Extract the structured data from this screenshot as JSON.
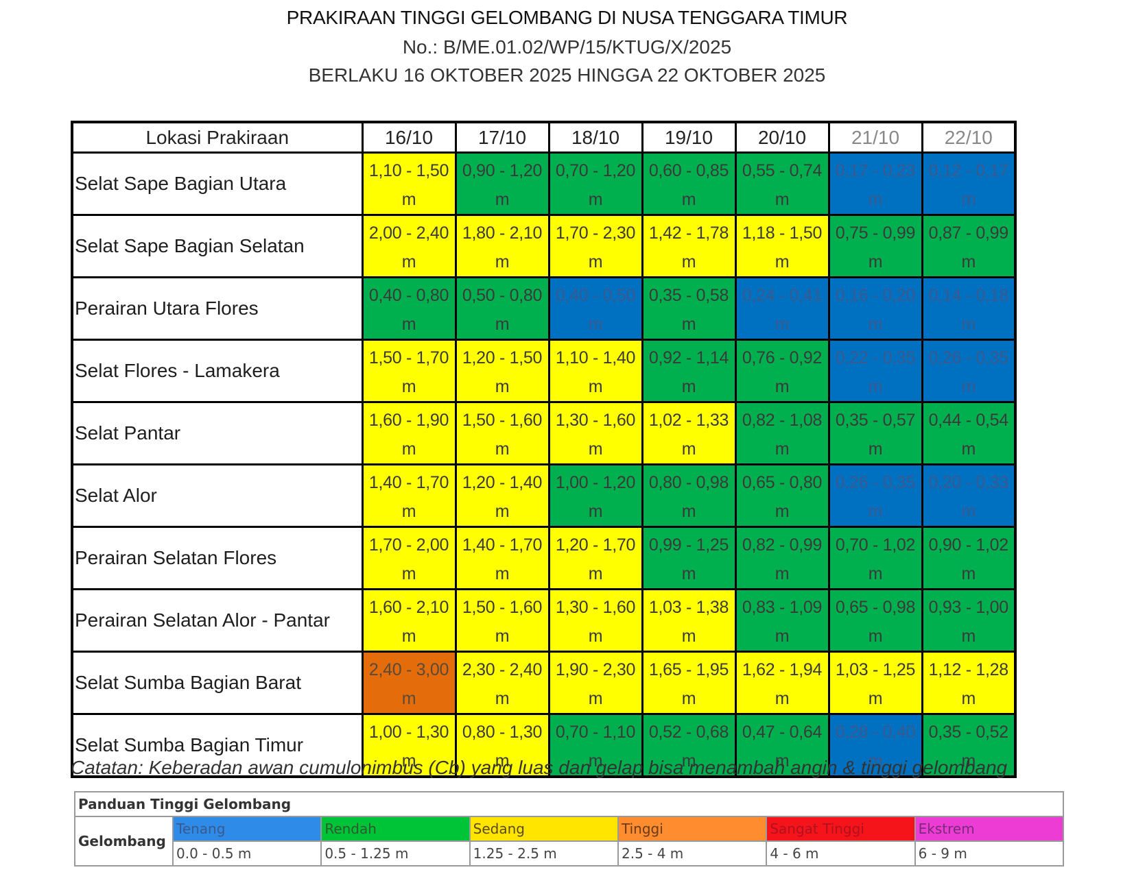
{
  "header": {
    "title": "PRAKIRAAN TINGGI GELOMBANG DI NUSA TENGGARA TIMUR",
    "number": "No.: B/ME.01.02/WP/15/KTUG/X/2025",
    "validity": "BERLAKU 16 OKTOBER 2025 HINGGA 22 OKTOBER 2025"
  },
  "table": {
    "location_header": "Lokasi Prakiraan",
    "dates": [
      "16/10",
      "17/10",
      "18/10",
      "19/10",
      "20/10",
      "21/10",
      "22/10"
    ],
    "unit": "m",
    "rows": [
      {
        "location": "Selat Sape Bagian Utara",
        "values": [
          "1,10 - 1,50",
          "0,90 - 1,20",
          "0,70 - 1,20",
          "0,60 - 0,85",
          "0,55 - 0,74",
          "0,17 - 0,23",
          "0,12 - 0,17"
        ],
        "colors": [
          "yellow",
          "green",
          "green",
          "green",
          "green",
          "blue",
          "blue"
        ]
      },
      {
        "location": "Selat Sape Bagian Selatan",
        "values": [
          "2,00 - 2,40",
          "1,80 - 2,10",
          "1,70 - 2,30",
          "1,42 - 1,78",
          "1,18 - 1,50",
          "0,75 - 0,99",
          "0,87 - 0,99"
        ],
        "colors": [
          "yellow",
          "yellow",
          "yellow",
          "yellow",
          "yellow",
          "green",
          "green"
        ]
      },
      {
        "location": "Perairan Utara Flores",
        "values": [
          "0,40 - 0,80",
          "0,50 - 0,80",
          "0,40 - 0,50",
          "0,35 - 0,58",
          "0,24 - 0,41",
          "0,16 - 0,20",
          "0,14 - 0,18"
        ],
        "colors": [
          "green",
          "green",
          "blue",
          "green",
          "blue",
          "blue",
          "blue"
        ]
      },
      {
        "location": "Selat Flores - Lamakera",
        "values": [
          "1,50 - 1,70",
          "1,20 - 1,50",
          "1,10 - 1,40",
          "0,92 - 1,14",
          "0,76 - 0,92",
          "0,22 - 0,35",
          "0,26 - 0,35"
        ],
        "colors": [
          "yellow",
          "yellow",
          "yellow",
          "green",
          "green",
          "blue",
          "blue"
        ]
      },
      {
        "location": "Selat Pantar",
        "values": [
          "1,60 - 1,90",
          "1,50 - 1,60",
          "1,30 - 1,60",
          "1,02 - 1,33",
          "0,82 - 1,08",
          "0,35 - 0,57",
          "0,44 - 0,54"
        ],
        "colors": [
          "yellow",
          "yellow",
          "yellow",
          "yellow",
          "green",
          "green",
          "green"
        ]
      },
      {
        "location": "Selat Alor",
        "values": [
          "1,40 - 1,70",
          "1,20 - 1,40",
          "1,00 - 1,20",
          "0,80 - 0,98",
          "0,65 - 0,80",
          "0,26 - 0,35",
          "0,20 - 0,33"
        ],
        "colors": [
          "yellow",
          "yellow",
          "green",
          "green",
          "green",
          "blue",
          "blue"
        ]
      },
      {
        "location": "Perairan Selatan Flores",
        "values": [
          "1,70 - 2,00",
          "1,40 - 1,70",
          "1,20 - 1,70",
          "0,99 - 1,25",
          "0,82 - 0,99",
          "0,70 - 1,02",
          "0,90 - 1,02"
        ],
        "colors": [
          "yellow",
          "yellow",
          "yellow",
          "green",
          "green",
          "green",
          "green"
        ]
      },
      {
        "location": "Perairan Selatan Alor - Pantar",
        "values": [
          "1,60 - 2,10",
          "1,50 - 1,60",
          "1,30 - 1,60",
          "1,03 - 1,38",
          "0,83 - 1,09",
          "0,65 - 0,98",
          "0,93 - 1,00"
        ],
        "colors": [
          "yellow",
          "yellow",
          "yellow",
          "yellow",
          "green",
          "green",
          "green"
        ]
      },
      {
        "location": "Selat Sumba Bagian Barat",
        "values": [
          "2,40 - 3,00",
          "2,30 - 2,40",
          "1,90 - 2,30",
          "1,65 - 1,95",
          "1,62 - 1,94",
          "1,03 - 1,25",
          "1,12 - 1,28"
        ],
        "colors": [
          "orange",
          "yellow",
          "yellow",
          "yellow",
          "yellow",
          "yellow",
          "yellow"
        ]
      },
      {
        "location": "Selat Sumba Bagian Timur",
        "values": [
          "1,00 - 1,30",
          "0,80 - 1,30",
          "0,70 - 1,10",
          "0,52 - 0,68",
          "0,47 - 0,64",
          "0,28 - 0,40",
          "0,35 - 0,52"
        ],
        "colors": [
          "yellow",
          "yellow",
          "green",
          "green",
          "green",
          "blue",
          "green"
        ]
      }
    ]
  },
  "note": "Catatan: Keberadan awan cumulonimbus (Cb) yang luas dan gelap bisa menambah angin & tinggi gelombang",
  "legend": {
    "title": "Panduan Tinggi Gelombang",
    "row_label": "Gelombang",
    "categories": [
      {
        "name": "Tenang",
        "range": "0.0 - 0.5 m",
        "color": "#2e8be8"
      },
      {
        "name": "Rendah",
        "range": "0.5 - 1.25 m",
        "color": "#00c437"
      },
      {
        "name": "Sedang",
        "range": "1.25 - 2.5 m",
        "color": "#ffe500"
      },
      {
        "name": "Tinggi",
        "range": "2.5 - 4 m",
        "color": "#ff8c2e"
      },
      {
        "name": "Sangat Tinggi",
        "range": "4 - 6 m",
        "color": "#f5141a"
      },
      {
        "name": "Ekstrem",
        "range": "6 - 9 m",
        "color": "#ed3cd3"
      }
    ]
  },
  "cell_colors": {
    "yellow": "#ffff00",
    "green": "#00b04f",
    "blue": "#0070c0",
    "orange": "#e46c0a"
  }
}
